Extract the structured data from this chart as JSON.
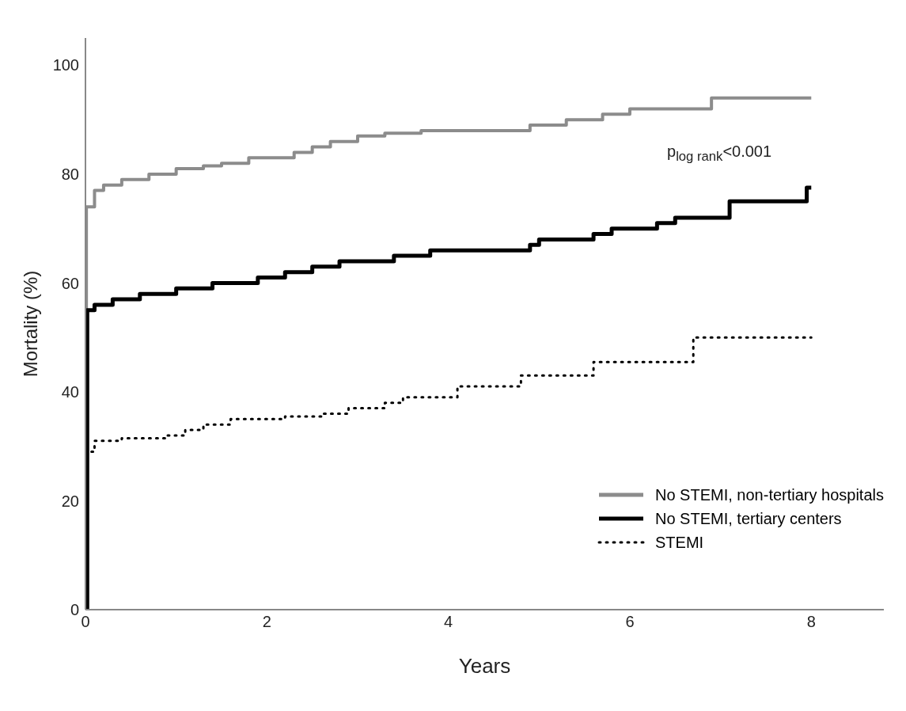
{
  "chart_data": {
    "type": "step",
    "xlabel": "Years",
    "ylabel": "Mortality (%)",
    "xlim": [
      0,
      8.8
    ],
    "ylim": [
      0,
      105
    ],
    "xticks": [
      0,
      2,
      4,
      6,
      8
    ],
    "yticks": [
      0,
      20,
      40,
      60,
      80,
      100
    ],
    "grid": false,
    "legend": "bottom right",
    "marker": "none",
    "annotations": [
      "p$_{log rank}$<0.001"
    ],
    "series": [
      {
        "name": "No STEMI, non-tertiary hospitals",
        "color": "#8c8c8c",
        "line_style": "solid",
        "x": [
          0,
          0.01,
          0.1,
          0.2,
          0.4,
          0.7,
          1.0,
          1.3,
          1.5,
          1.8,
          2.3,
          2.5,
          2.7,
          3.0,
          3.3,
          3.7,
          4.9,
          5.3,
          5.7,
          6.0,
          6.9,
          8.0
        ],
        "values": [
          0,
          74,
          77,
          78,
          79,
          80,
          81,
          81.5,
          82,
          83,
          84,
          85,
          86,
          87,
          87.5,
          88,
          89,
          90,
          91,
          92,
          94,
          94
        ]
      },
      {
        "name": "No STEMI, tertiary centers",
        "color": "#000000",
        "line_style": "solid",
        "x": [
          0,
          0.02,
          0.1,
          0.3,
          0.6,
          1.0,
          1.4,
          1.9,
          2.2,
          2.5,
          2.8,
          3.4,
          3.8,
          4.9,
          5.0,
          5.6,
          5.8,
          6.3,
          6.5,
          7.1,
          7.95,
          8.0
        ],
        "values": [
          0,
          55,
          56,
          57,
          58,
          59,
          60,
          61,
          62,
          63,
          64,
          65,
          66,
          67,
          68,
          69,
          70,
          71,
          72,
          75,
          77.5,
          77.5
        ]
      },
      {
        "name": "STEMI",
        "color": "#000000",
        "line_style": "dotted",
        "x": [
          0,
          0.02,
          0.1,
          0.4,
          0.9,
          1.1,
          1.3,
          1.6,
          2.2,
          2.6,
          2.9,
          3.3,
          3.5,
          4.1,
          4.8,
          5.6,
          6.7,
          8.0
        ],
        "values": [
          0,
          29,
          31,
          31.5,
          32,
          33,
          34,
          35,
          35.5,
          36,
          37,
          38,
          39,
          41,
          43,
          45.5,
          50,
          50
        ]
      }
    ]
  }
}
